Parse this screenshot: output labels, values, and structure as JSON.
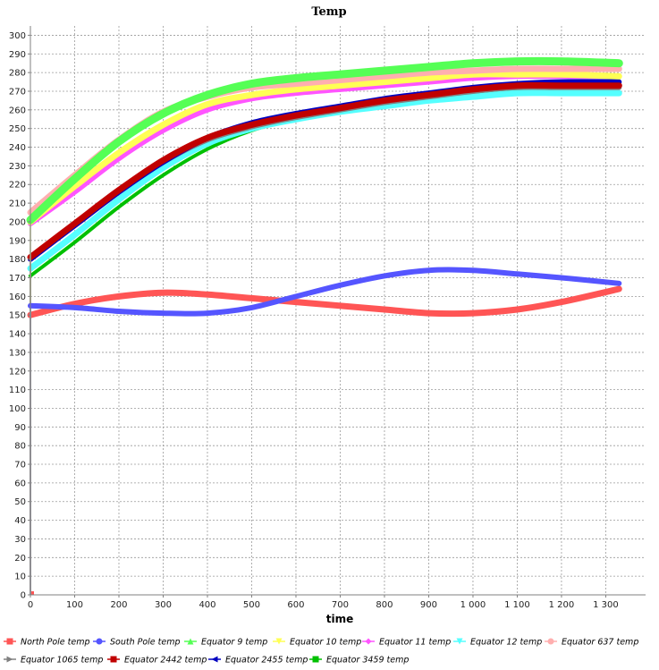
{
  "chart_data": {
    "type": "line",
    "title": "Temp",
    "xlabel": "time",
    "ylabel": "",
    "xlim": [
      0,
      1390
    ],
    "ylim": [
      0,
      305
    ],
    "grid": true,
    "legend_position": "bottom",
    "x_ticks": [
      0,
      100,
      200,
      300,
      400,
      500,
      600,
      700,
      800,
      900,
      1000,
      1100,
      1200,
      1300
    ],
    "x_tick_labels": [
      "0",
      "100",
      "200",
      "300",
      "400",
      "500",
      "600",
      "700",
      "800",
      "900",
      "1 000",
      "1 100",
      "1 200",
      "1 300"
    ],
    "y_ticks": [
      0,
      10,
      20,
      30,
      40,
      50,
      60,
      70,
      80,
      90,
      100,
      110,
      120,
      130,
      140,
      150,
      160,
      170,
      180,
      190,
      200,
      210,
      220,
      230,
      240,
      250,
      260,
      270,
      280,
      290,
      300
    ],
    "y_tick_labels": [
      "0",
      "10",
      "20",
      "30",
      "40",
      "50",
      "60",
      "70",
      "80",
      "90",
      "100",
      "110",
      "120",
      "130",
      "140",
      "150",
      "160",
      "170",
      "180",
      "190",
      "200",
      "210",
      "220",
      "230",
      "240",
      "250",
      "260",
      "270",
      "280",
      "290",
      "300"
    ],
    "x": [
      0,
      100,
      200,
      300,
      400,
      500,
      600,
      700,
      800,
      900,
      1000,
      1100,
      1200,
      1330
    ],
    "series": [
      {
        "name": "North Pole temp",
        "color": "#ff5555",
        "marker": "square",
        "values": [
          150,
          156,
          160,
          162,
          161,
          159,
          157,
          155,
          153,
          151,
          151,
          153,
          157,
          164
        ]
      },
      {
        "name": "South Pole temp",
        "color": "#5555ff",
        "marker": "circle",
        "values": [
          155,
          154,
          152,
          151,
          151,
          154,
          160,
          166,
          171,
          174,
          174,
          172,
          170,
          167
        ]
      },
      {
        "name": "Equator 9 temp",
        "color": "#55ff55",
        "marker": "triangle-up",
        "values": [
          201,
          223,
          243,
          258,
          268,
          274,
          277,
          279,
          281,
          283,
          285,
          286,
          286,
          285
        ]
      },
      {
        "name": "Equator 10 temp",
        "color": "#ffff55",
        "marker": "triangle-down",
        "values": [
          200,
          219,
          237,
          252,
          263,
          268,
          271,
          273,
          275,
          277,
          279,
          279,
          279,
          278
        ]
      },
      {
        "name": "Equator 11 temp",
        "color": "#ff55ff",
        "marker": "diamond",
        "values": [
          199,
          216,
          234,
          249,
          260,
          266,
          269,
          271,
          273,
          275,
          277,
          278,
          278,
          278
        ]
      },
      {
        "name": "Equator 12 temp",
        "color": "#55ffff",
        "marker": "triangle-down",
        "values": [
          175,
          193,
          212,
          229,
          242,
          250,
          255,
          259,
          262,
          265,
          267,
          269,
          269,
          269
        ]
      },
      {
        "name": "Equator 637 temp",
        "color": "#ffafaf",
        "marker": "circle",
        "values": [
          205,
          225,
          244,
          259,
          267,
          272,
          274,
          276,
          278,
          280,
          281,
          282,
          282,
          282
        ]
      },
      {
        "name": "Equator 1065 temp",
        "color": "#808080",
        "marker": "triangle-right",
        "values": [
          180,
          198,
          216,
          232,
          244,
          251,
          256,
          260,
          264,
          267,
          270,
          272,
          272,
          272
        ]
      },
      {
        "name": "Equator 2442 temp",
        "color": "#c00000",
        "marker": "square",
        "values": [
          181,
          199,
          217,
          233,
          245,
          252,
          257,
          261,
          265,
          268,
          271,
          273,
          273,
          273
        ]
      },
      {
        "name": "Equator 2455 temp",
        "color": "#0000c0",
        "marker": "triangle-left",
        "values": [
          180,
          198,
          216,
          232,
          245,
          253,
          258,
          262,
          266,
          269,
          272,
          274,
          275,
          275
        ]
      },
      {
        "name": "Equator 3459 temp",
        "color": "#00c000",
        "marker": "square",
        "values": [
          171,
          189,
          208,
          225,
          239,
          249,
          255,
          259,
          263,
          266,
          269,
          271,
          272,
          272
        ]
      }
    ]
  }
}
